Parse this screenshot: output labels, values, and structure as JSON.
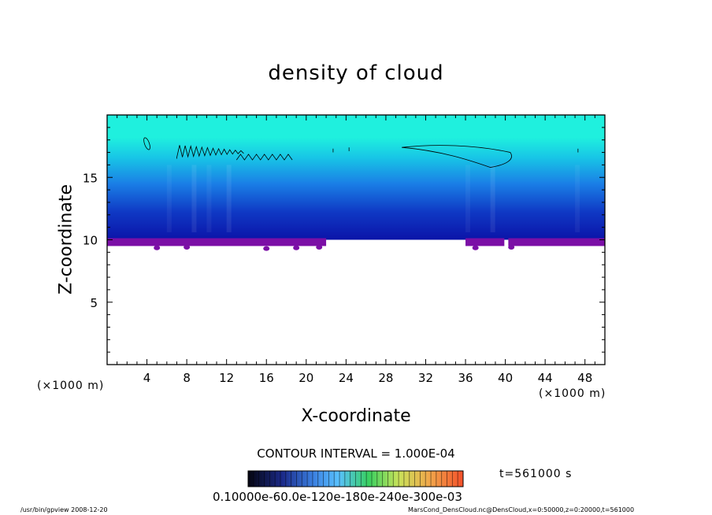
{
  "chart_data": {
    "type": "heatmap",
    "title": "density of cloud",
    "xlabel": "X-coordinate",
    "ylabel": "Z-coordinate",
    "x_unit": "(×1000 m)",
    "y_unit": "(×1000 m)",
    "xlim": [
      0,
      50
    ],
    "ylim": [
      0,
      20
    ],
    "x_ticks": [
      4,
      8,
      12,
      16,
      20,
      24,
      28,
      32,
      36,
      40,
      44,
      48
    ],
    "y_ticks": [
      5,
      10,
      15
    ],
    "contour_interval": "CONTOUR INTERVAL = 1.000E-04",
    "time_label": "t=561000 s",
    "colorbar_label": "0.10000e-60.0e-120e-180e-240e-300e-03",
    "colorscale": [
      "#050510",
      "#1b2a8a",
      "#3b7fe0",
      "#58c0ff",
      "#38d060",
      "#c9e25a",
      "#f2a44a",
      "#f4502a"
    ],
    "field_colors": {
      "top": "#1ff0de",
      "mid": "#1a7fe6",
      "deep": "#0b14a8",
      "cloud_base": "#7b0fa6"
    },
    "field": {
      "cloud_base_z": 9.5,
      "field_top_z": 20,
      "cloud_base_gaps_x": [
        [
          22,
          36
        ],
        [
          39.9,
          40.3
        ]
      ],
      "contour_line_z": 17.4
    }
  },
  "footer": {
    "left": "/usr/bin/gpview   2008-12-20",
    "right": "MarsCond_DensCloud.nc@DensCloud,x=0:50000,z=0:20000,t=561000"
  }
}
